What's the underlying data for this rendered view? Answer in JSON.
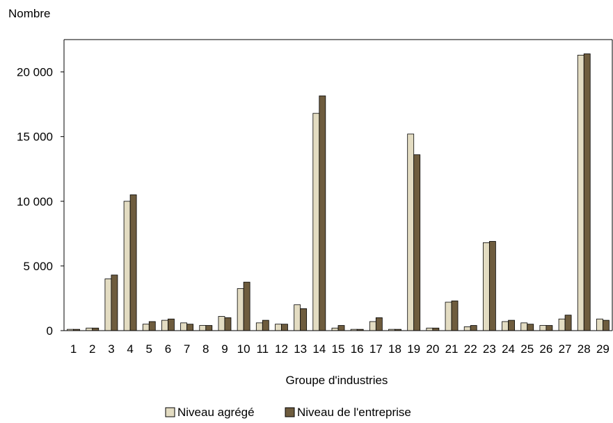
{
  "chart_data": {
    "type": "bar",
    "title": "",
    "ylabel": "Nombre",
    "xlabel": "Groupe d'industries",
    "ylim": [
      0,
      22500
    ],
    "yticks": [
      0,
      5000,
      10000,
      15000,
      20000
    ],
    "ytick_labels": [
      "0",
      "5 000",
      "10 000",
      "15 000",
      "20 000"
    ],
    "grid": false,
    "legend_position": "bottom",
    "categories": [
      "1",
      "2",
      "3",
      "4",
      "5",
      "6",
      "7",
      "8",
      "9",
      "10",
      "11",
      "12",
      "13",
      "14",
      "15",
      "16",
      "17",
      "18",
      "19",
      "20",
      "21",
      "22",
      "23",
      "24",
      "25",
      "26",
      "27",
      "28",
      "29"
    ],
    "series": [
      {
        "name": "Niveau agrégé",
        "color": "#e3dcc2",
        "values": [
          100,
          200,
          4000,
          10000,
          500,
          800,
          600,
          400,
          1100,
          3250,
          600,
          500,
          2000,
          16800,
          200,
          100,
          700,
          100,
          15200,
          200,
          2200,
          300,
          6800,
          700,
          600,
          400,
          900,
          21300,
          900
        ]
      },
      {
        "name": "Niveau de l'entreprise",
        "color": "#6e5c3e",
        "values": [
          100,
          200,
          4300,
          10500,
          700,
          900,
          500,
          400,
          1000,
          3750,
          800,
          500,
          1700,
          18150,
          400,
          100,
          1000,
          100,
          13600,
          200,
          2300,
          400,
          6900,
          800,
          500,
          400,
          1200,
          21400,
          800
        ]
      }
    ]
  }
}
